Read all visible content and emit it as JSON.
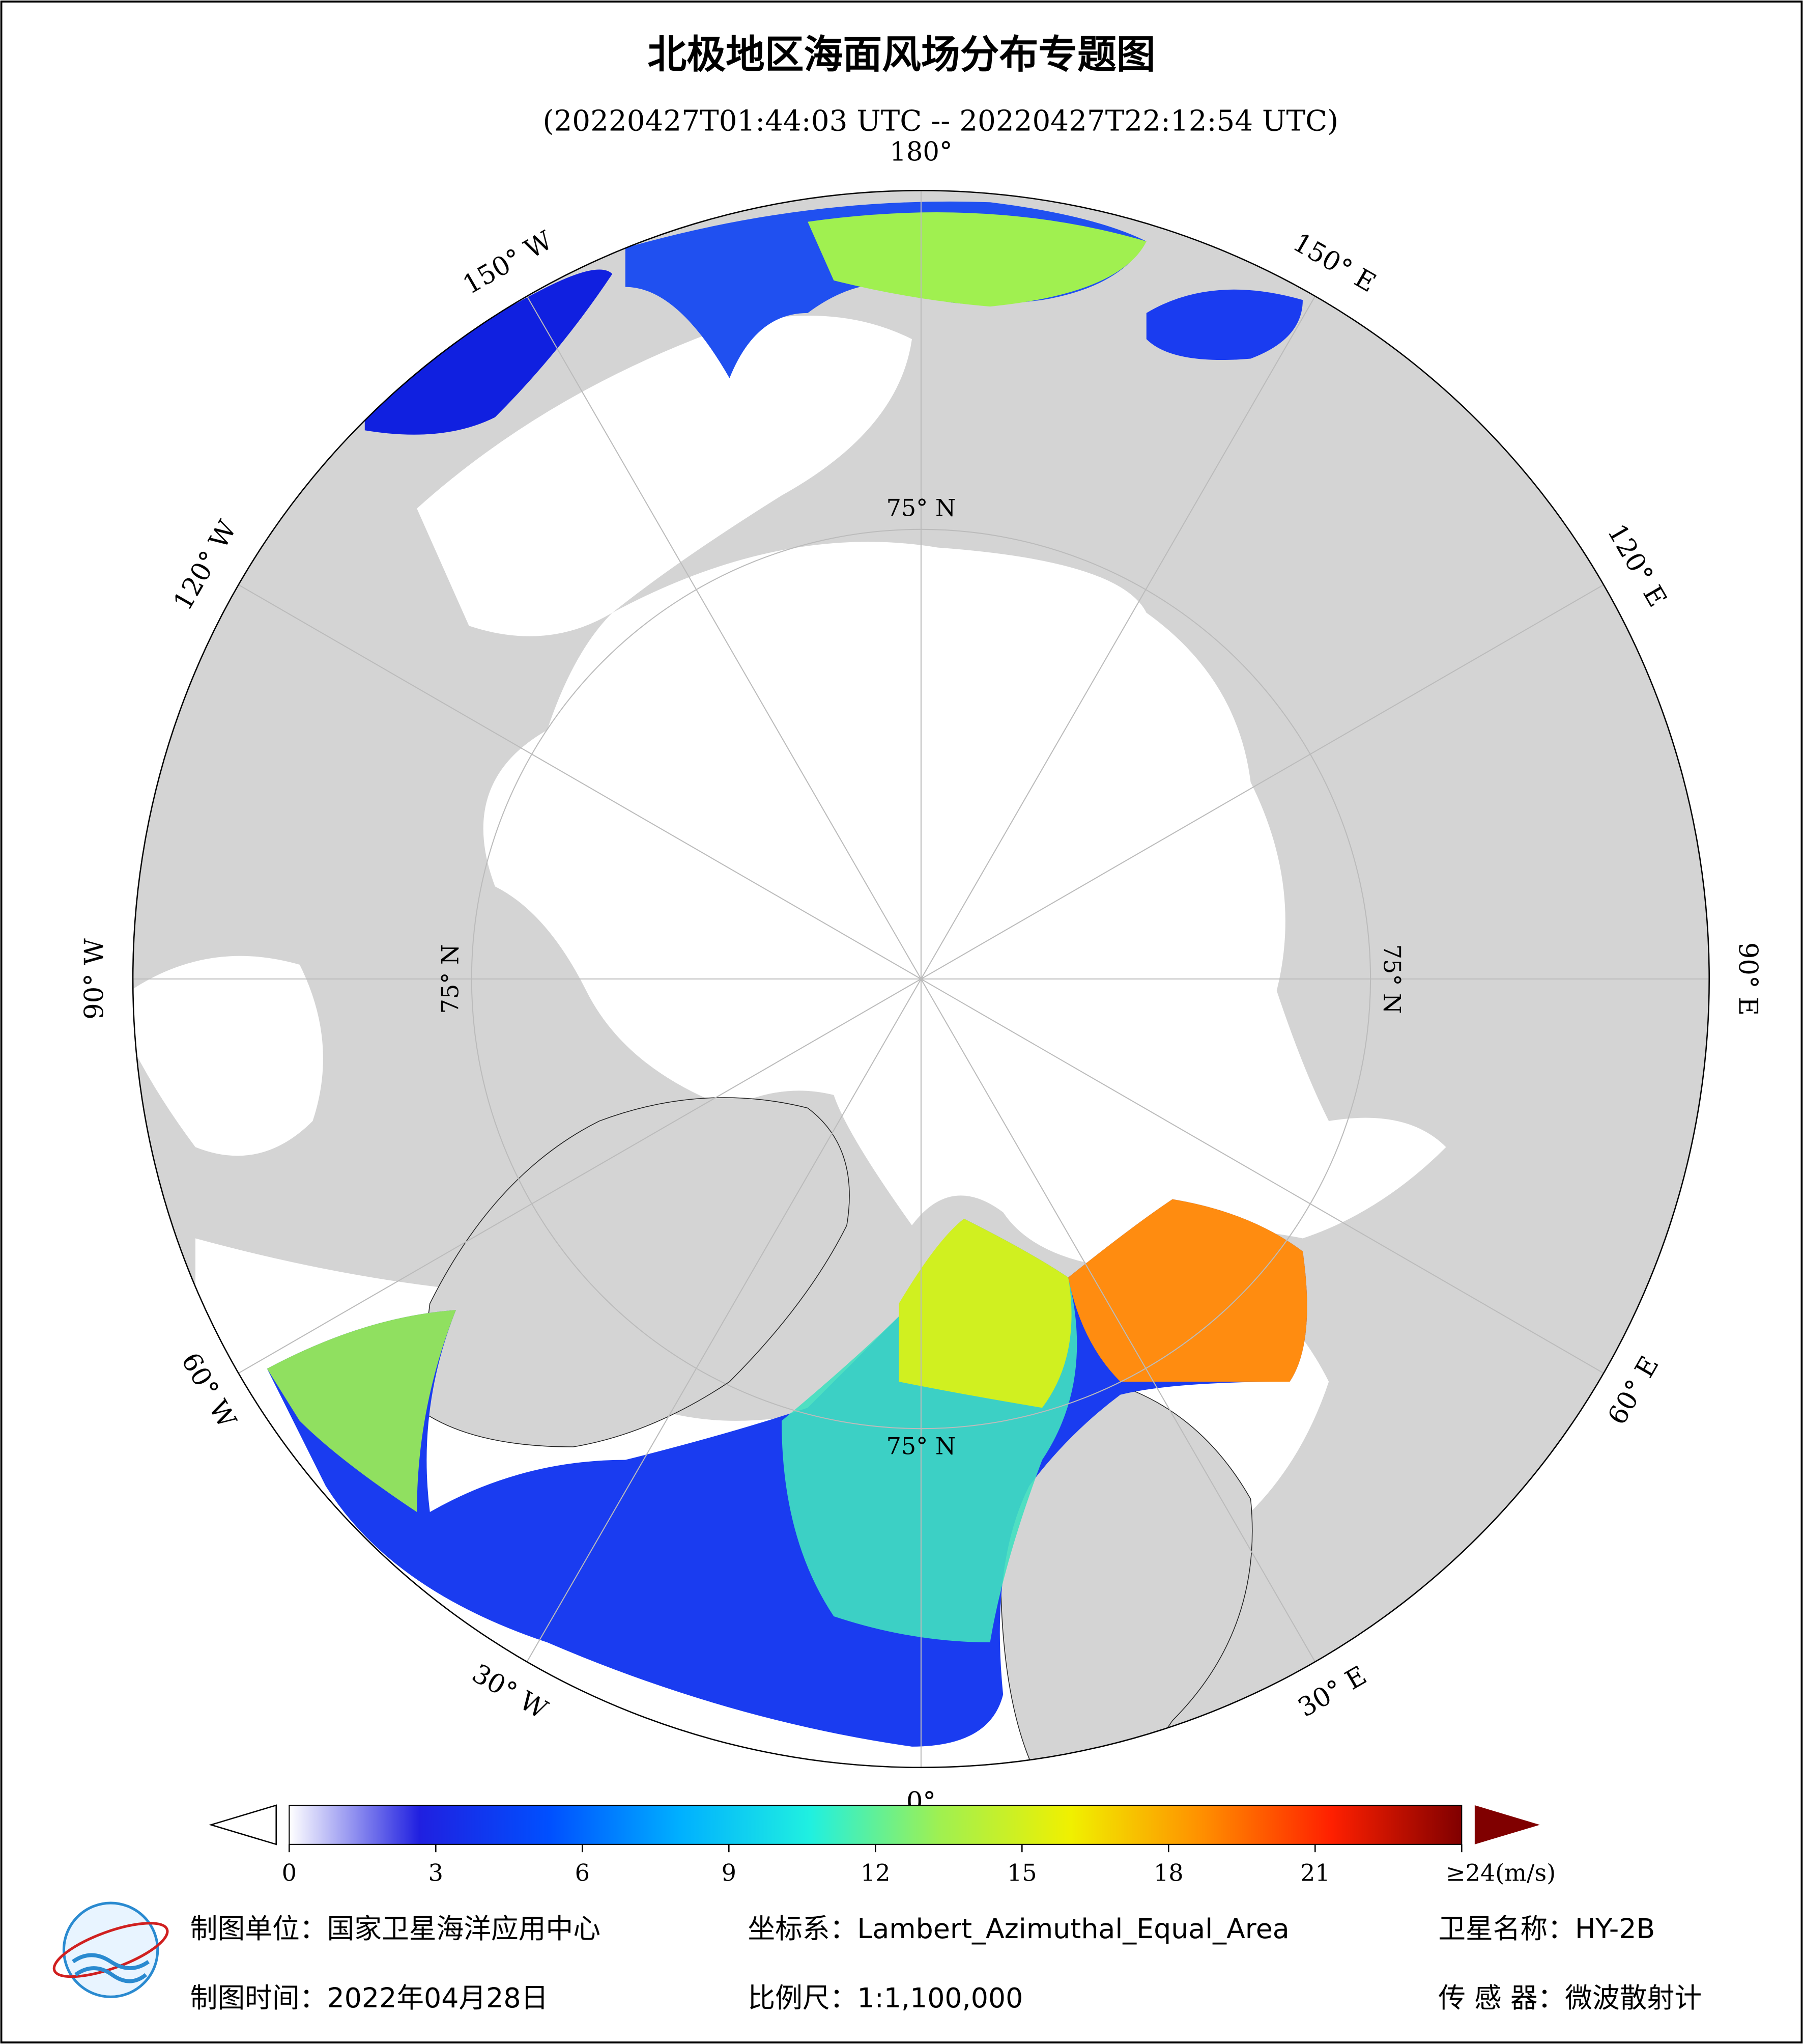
{
  "title": "北极地区海面风场分布专题图",
  "subtitle": "(20220427T01:44:03 UTC -- 20220427T22:12:54 UTC)",
  "map": {
    "lon_labels": [
      "0°",
      "30° E",
      "60° E",
      "90° E",
      "120° E",
      "150° E",
      "180°",
      "150° W",
      "120° W",
      "90° W",
      "60° W",
      "30° W"
    ],
    "lat_labels": [
      "75° N",
      "75° N",
      "75° N",
      "75° N"
    ]
  },
  "colorbar": {
    "lim": [
      0,
      24
    ],
    "ticks": [
      0,
      3,
      6,
      9,
      12,
      15,
      18,
      21,
      {
        "value": 24,
        "label": "≥24(m/s)"
      }
    ],
    "colors": [
      "#ffffff",
      "#2020e0",
      "#0050ff",
      "#00b0ff",
      "#20f0e0",
      "#a0f050",
      "#f0f000",
      "#ff9000",
      "#ff2000",
      "#800000"
    ]
  },
  "footer": {
    "unit": "制图单位：国家卫星海洋应用中心",
    "crs": "坐标系：Lambert_Azimuthal_Equal_Area",
    "satellite": "卫星名称：HY-2B",
    "date": "制图时间：2022年04月28日",
    "scale": "比例尺：1:1,100,000",
    "sensor": "传 感 器：微波散射计"
  }
}
